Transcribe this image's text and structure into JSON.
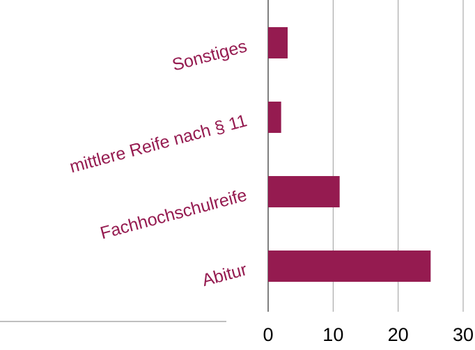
{
  "chart_data": {
    "type": "bar",
    "orientation": "horizontal",
    "categories": [
      "Sonstiges",
      "mittlere Reife nach § 11",
      "Fachhochschulreife",
      "Abitur"
    ],
    "values": [
      3,
      2,
      11,
      25
    ],
    "color": "#951b50",
    "xlim": [
      0,
      30
    ],
    "xticks": [
      0,
      10,
      20,
      30
    ],
    "grid": true
  }
}
